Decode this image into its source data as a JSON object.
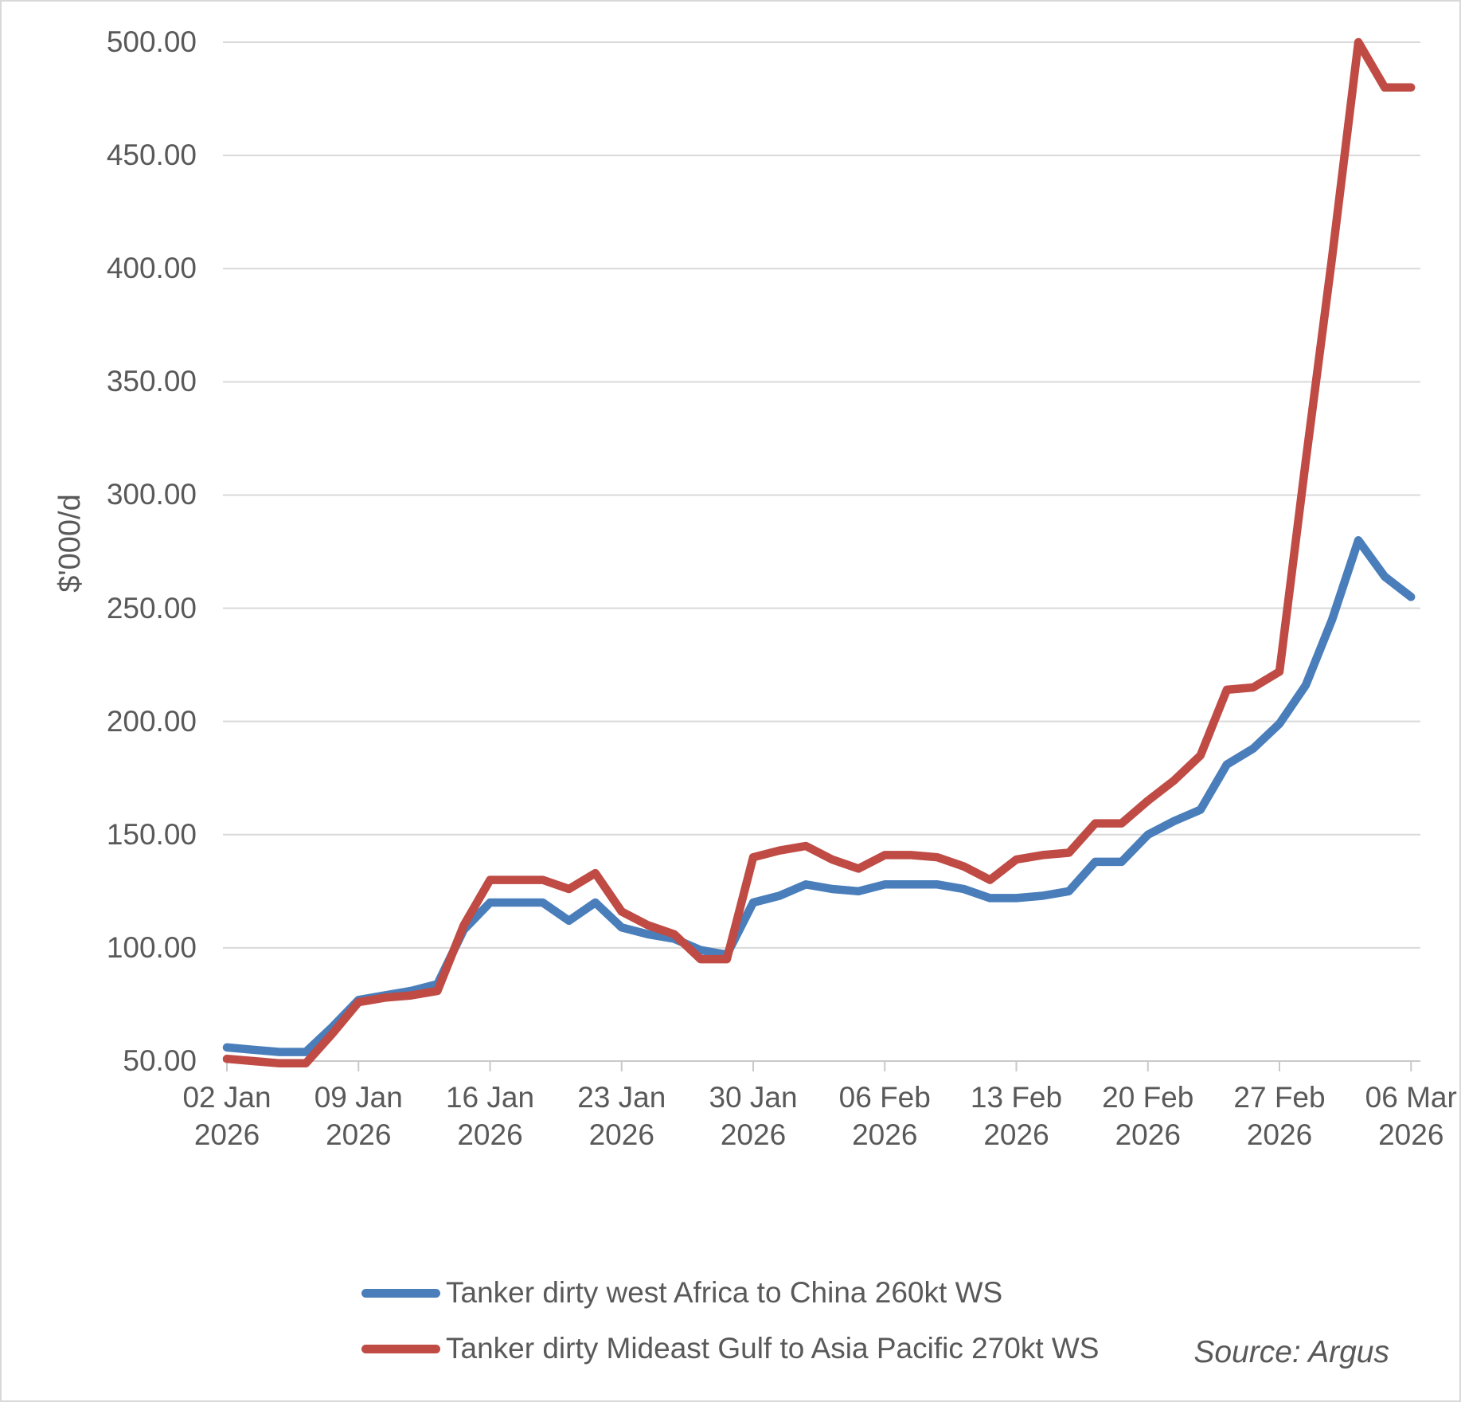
{
  "chart_data": {
    "type": "line",
    "title": "",
    "ylabel": "$'000/d",
    "xlabel": "",
    "ylim": [
      50,
      500
    ],
    "grid": true,
    "legend_position": "bottom",
    "source_note": "Source: Argus",
    "colors": {
      "gridline": "#d9d9d9",
      "axis_line": "#c9c9c9",
      "tick_mark": "#c9c9c9",
      "axis_text": "#595959",
      "series_blue": "#4a7ebb",
      "series_red": "#bf4b44"
    },
    "y_axis_ticks": [
      {
        "value": 500,
        "label": "500.00"
      },
      {
        "value": 450,
        "label": "450.00"
      },
      {
        "value": 400,
        "label": "400.00"
      },
      {
        "value": 350,
        "label": "350.00"
      },
      {
        "value": 300,
        "label": "300.00"
      },
      {
        "value": 250,
        "label": "250.00"
      },
      {
        "value": 200,
        "label": "200.00"
      },
      {
        "value": 150,
        "label": "150.00"
      },
      {
        "value": 100,
        "label": "100.00"
      },
      {
        "value": 50,
        "label": "50.00"
      }
    ],
    "x_axis_ticks": [
      {
        "index": 0,
        "label": "02 Jan\n2026"
      },
      {
        "index": 5,
        "label": "09 Jan\n2026"
      },
      {
        "index": 10,
        "label": "16 Jan\n2026"
      },
      {
        "index": 15,
        "label": "23 Jan\n2026"
      },
      {
        "index": 20,
        "label": "30 Jan\n2026"
      },
      {
        "index": 25,
        "label": "06 Feb\n2026"
      },
      {
        "index": 30,
        "label": "13 Feb\n2026"
      },
      {
        "index": 35,
        "label": "20 Feb\n2026"
      },
      {
        "index": 40,
        "label": "27 Feb\n2026"
      },
      {
        "index": 45,
        "label": "06 Mar\n2026"
      }
    ],
    "x": [
      "02 Jan 2026",
      "05 Jan 2026",
      "06 Jan 2026",
      "07 Jan 2026",
      "08 Jan 2026",
      "09 Jan 2026",
      "12 Jan 2026",
      "13 Jan 2026",
      "14 Jan 2026",
      "15 Jan 2026",
      "16 Jan 2026",
      "19 Jan 2026",
      "20 Jan 2026",
      "21 Jan 2026",
      "22 Jan 2026",
      "23 Jan 2026",
      "26 Jan 2026",
      "27 Jan 2026",
      "28 Jan 2026",
      "29 Jan 2026",
      "30 Jan 2026",
      "02 Feb 2026",
      "03 Feb 2026",
      "04 Feb 2026",
      "05 Feb 2026",
      "06 Feb 2026",
      "09 Feb 2026",
      "10 Feb 2026",
      "11 Feb 2026",
      "12 Feb 2026",
      "13 Feb 2026",
      "16 Feb 2026",
      "17 Feb 2026",
      "18 Feb 2026",
      "19 Feb 2026",
      "20 Feb 2026",
      "23 Feb 2026",
      "24 Feb 2026",
      "25 Feb 2026",
      "26 Feb 2026",
      "27 Feb 2026",
      "02 Mar 2026",
      "03 Mar 2026",
      "04 Mar 2026",
      "05 Mar 2026",
      "06 Mar 2026"
    ],
    "series": [
      {
        "id": "west-africa-china",
        "name": "Tanker dirty west Africa to China 260kt WS",
        "color": "#4a7ebb",
        "values": [
          56,
          55,
          54,
          54,
          65,
          77,
          79,
          81,
          84,
          108,
          120,
          120,
          120,
          112,
          120,
          109,
          106,
          104,
          99,
          97,
          120,
          123,
          128,
          126,
          125,
          128,
          128,
          128,
          126,
          122,
          122,
          123,
          125,
          138,
          138,
          150,
          156,
          161,
          181,
          188,
          199,
          216,
          245,
          280,
          264,
          255
        ]
      },
      {
        "id": "mideast-gulf-asia-pacific",
        "name": "Tanker dirty Mideast Gulf to Asia Pacific 270kt WS",
        "color": "#bf4b44",
        "values": [
          51,
          50,
          49,
          49,
          62,
          76,
          78,
          79,
          81,
          110,
          130,
          130,
          130,
          126,
          133,
          116,
          110,
          106,
          95,
          95,
          140,
          143,
          145,
          139,
          135,
          141,
          141,
          140,
          136,
          130,
          139,
          141,
          142,
          155,
          155,
          165,
          174,
          185,
          214,
          215,
          222,
          315,
          405,
          500,
          480,
          480
        ]
      }
    ]
  }
}
